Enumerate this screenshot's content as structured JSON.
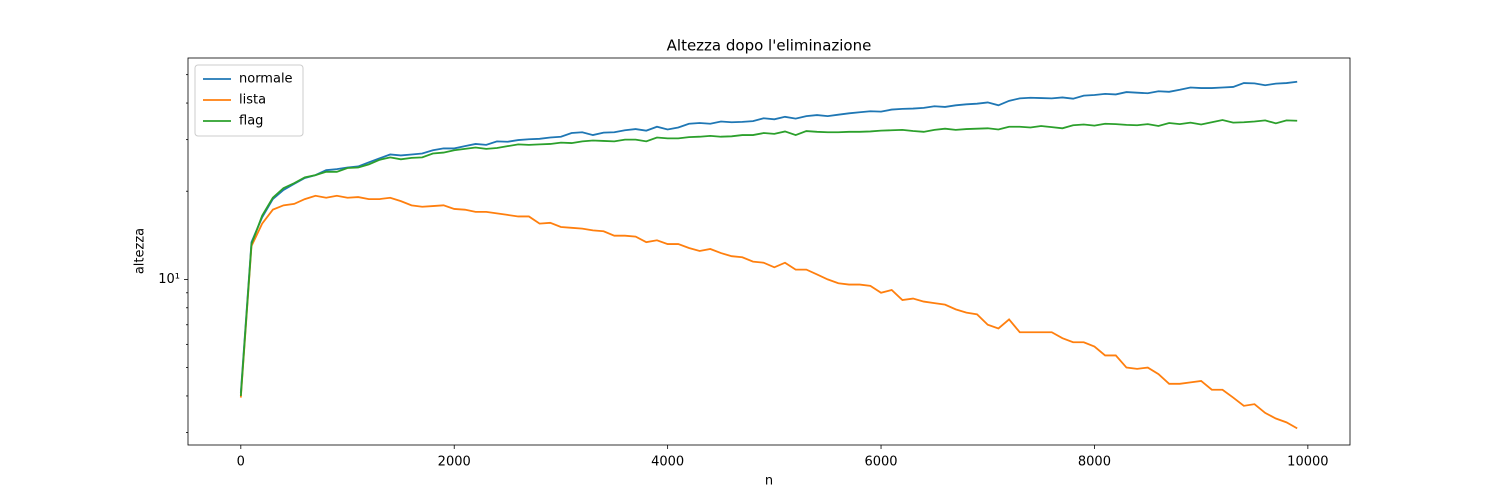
{
  "chart_data": {
    "type": "line",
    "title": "Altezza dopo l'eliminazione",
    "xlabel": "n",
    "ylabel": "altezza",
    "yscale": "log",
    "legend": "upper left",
    "grid": false,
    "xlim": [
      -495,
      10395
    ],
    "xticks": [
      0,
      2000,
      4000,
      6000,
      8000,
      10000
    ],
    "ylim": [
      2.72,
      57
    ],
    "yticks": [
      {
        "value": 10,
        "label": "10¹"
      }
    ],
    "yminorticks": [
      3,
      4,
      5,
      6,
      7,
      8,
      9,
      20,
      30,
      40,
      50
    ],
    "x": [
      0,
      100,
      200,
      300,
      400,
      500,
      600,
      700,
      800,
      900,
      1000,
      1100,
      1200,
      1300,
      1400,
      1500,
      1600,
      1700,
      1800,
      1900,
      2000,
      2100,
      2200,
      2300,
      2400,
      2500,
      2600,
      2700,
      2800,
      2900,
      3000,
      3100,
      3200,
      3300,
      3400,
      3500,
      3600,
      3700,
      3800,
      3900,
      4000,
      4100,
      4200,
      4300,
      4400,
      4500,
      4600,
      4700,
      4800,
      4900,
      5000,
      5100,
      5200,
      5300,
      5400,
      5500,
      5600,
      5700,
      5800,
      5900,
      6000,
      6100,
      6200,
      6300,
      6400,
      6500,
      6600,
      6700,
      6800,
      6900,
      7000,
      7100,
      7200,
      7300,
      7400,
      7500,
      7600,
      7700,
      7800,
      7900,
      8000,
      8100,
      8200,
      8300,
      8400,
      8500,
      8600,
      8700,
      8800,
      8900,
      9000,
      9100,
      9200,
      9300,
      9400,
      9500,
      9600,
      9700,
      9800,
      9900
    ],
    "series": [
      {
        "name": "normale",
        "color": "#1f77b4",
        "values": [
          4.1,
          13.4,
          16.3,
          18.8,
          20.2,
          21.2,
          22.2,
          22.7,
          23.6,
          23.8,
          24.1,
          24.3,
          25.1,
          25.9,
          26.7,
          26.5,
          26.7,
          26.9,
          27.6,
          28.0,
          28.0,
          28.5,
          29.0,
          28.8,
          29.6,
          29.5,
          29.9,
          30.1,
          30.2,
          30.5,
          30.7,
          31.6,
          31.8,
          31.1,
          31.7,
          31.8,
          32.3,
          32.6,
          32.2,
          33.2,
          32.5,
          33.0,
          34.0,
          34.2,
          34.0,
          34.6,
          34.4,
          34.5,
          34.7,
          35.5,
          35.2,
          35.9,
          35.4,
          36.1,
          36.4,
          36.1,
          36.5,
          36.9,
          37.2,
          37.5,
          37.4,
          38.0,
          38.2,
          38.3,
          38.5,
          39.0,
          38.8,
          39.3,
          39.6,
          39.8,
          40.2,
          39.3,
          40.7,
          41.5,
          41.7,
          41.6,
          41.5,
          41.8,
          41.4,
          42.4,
          42.6,
          43.0,
          42.8,
          43.6,
          43.4,
          43.2,
          43.9,
          43.7,
          44.4,
          45.2,
          45.0,
          45.0,
          45.2,
          45.4,
          46.8,
          46.7,
          46.0,
          46.6,
          46.8,
          47.3
        ]
      },
      {
        "name": "lista",
        "color": "#ff7f0e",
        "values": [
          3.95,
          13.0,
          15.5,
          17.3,
          17.9,
          18.1,
          18.8,
          19.3,
          19.0,
          19.3,
          19.0,
          19.1,
          18.8,
          18.8,
          19.0,
          18.5,
          17.9,
          17.7,
          17.8,
          17.9,
          17.4,
          17.3,
          17.0,
          17.0,
          16.8,
          16.6,
          16.4,
          16.4,
          15.5,
          15.6,
          15.1,
          15.0,
          14.9,
          14.7,
          14.6,
          14.1,
          14.1,
          14.0,
          13.4,
          13.6,
          13.2,
          13.2,
          12.8,
          12.5,
          12.7,
          12.3,
          12.0,
          11.9,
          11.5,
          11.4,
          11.0,
          11.4,
          10.8,
          10.8,
          10.4,
          10.0,
          9.7,
          9.6,
          9.6,
          9.5,
          9.0,
          9.2,
          8.5,
          8.6,
          8.4,
          8.3,
          8.2,
          7.9,
          7.7,
          7.6,
          7.0,
          6.8,
          7.3,
          6.6,
          6.6,
          6.6,
          6.6,
          6.3,
          6.1,
          6.1,
          5.9,
          5.5,
          5.5,
          5.0,
          4.95,
          5.0,
          4.75,
          4.4,
          4.4,
          4.45,
          4.5,
          4.2,
          4.2,
          3.95,
          3.7,
          3.75,
          3.5,
          3.35,
          3.25,
          3.1
        ]
      },
      {
        "name": "flag",
        "color": "#2ca02c",
        "values": [
          4.0,
          13.2,
          16.5,
          19.0,
          20.5,
          21.3,
          22.3,
          22.7,
          23.3,
          23.3,
          24.0,
          24.1,
          24.7,
          25.6,
          26.1,
          25.7,
          26.0,
          26.1,
          26.9,
          27.1,
          27.6,
          27.9,
          28.2,
          27.9,
          28.1,
          28.5,
          28.9,
          28.8,
          28.9,
          29.0,
          29.3,
          29.2,
          29.6,
          29.8,
          29.7,
          29.6,
          30.0,
          30.0,
          29.6,
          30.5,
          30.3,
          30.3,
          30.6,
          30.7,
          30.9,
          30.7,
          30.8,
          31.1,
          31.1,
          31.6,
          31.4,
          32.0,
          31.1,
          32.1,
          31.9,
          31.8,
          31.8,
          31.9,
          31.9,
          32.0,
          32.2,
          32.3,
          32.4,
          32.1,
          31.9,
          32.4,
          32.7,
          32.4,
          32.6,
          32.7,
          32.8,
          32.5,
          33.2,
          33.2,
          33.0,
          33.4,
          33.1,
          32.8,
          33.6,
          33.8,
          33.5,
          34.0,
          33.9,
          33.7,
          33.6,
          33.9,
          33.4,
          34.2,
          33.9,
          34.3,
          33.8,
          34.4,
          35.0,
          34.3,
          34.4,
          34.6,
          34.9,
          34.1,
          34.9,
          34.8
        ]
      }
    ]
  }
}
